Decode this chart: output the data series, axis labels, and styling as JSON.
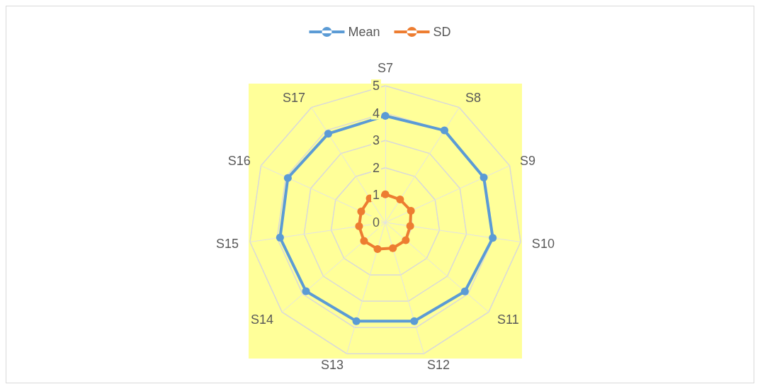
{
  "chart_data": {
    "type": "radar",
    "categories": [
      "S7",
      "S8",
      "S9",
      "S10",
      "S11",
      "S12",
      "S13",
      "S14",
      "S15",
      "S16",
      "S17"
    ],
    "series": [
      {
        "name": "Mean",
        "color": "#5b9bd5",
        "values": [
          3.9,
          4.0,
          3.96,
          3.97,
          3.85,
          3.76,
          3.76,
          3.84,
          3.89,
          3.92,
          3.86
        ]
      },
      {
        "name": "SD",
        "color": "#ed7d31",
        "values": [
          1.03,
          1.0,
          1.03,
          0.92,
          0.99,
          0.98,
          1.01,
          1.03,
          0.97,
          0.97,
          1.05
        ]
      }
    ],
    "ylim": [
      0,
      5
    ],
    "yticks": [
      0,
      1,
      2,
      3,
      4,
      5
    ],
    "legend": "top",
    "marker": "circle",
    "grid": true
  }
}
